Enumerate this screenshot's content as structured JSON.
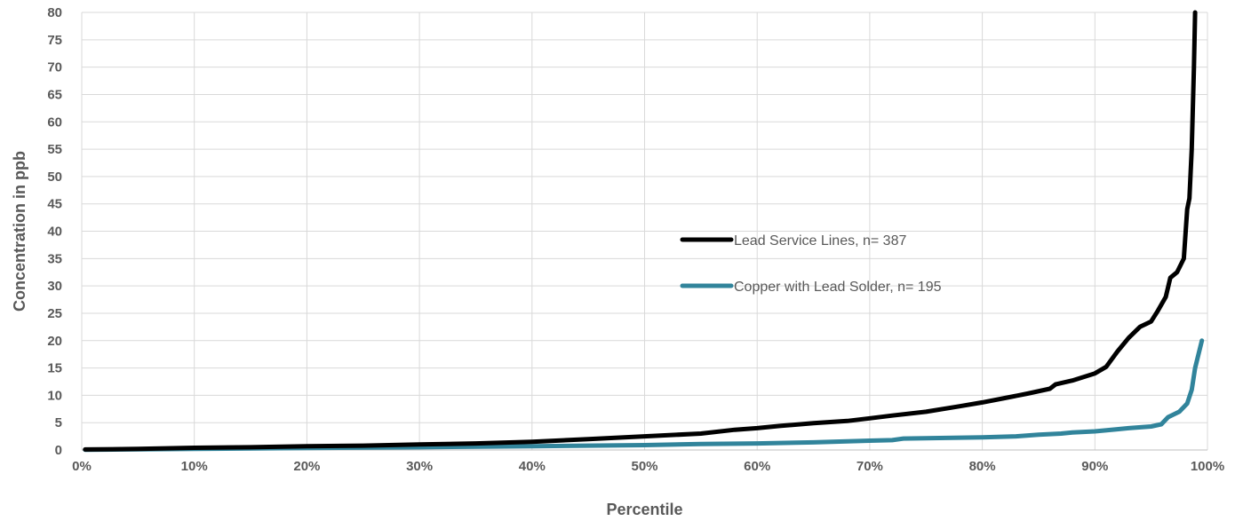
{
  "chart_data": {
    "type": "line",
    "title": "",
    "xlabel": "Percentile",
    "ylabel": "Concentration in ppb",
    "xlim": [
      0,
      100
    ],
    "ylim": [
      0,
      80
    ],
    "x_ticks": [
      0,
      10,
      20,
      30,
      40,
      50,
      60,
      70,
      80,
      90,
      100
    ],
    "x_tick_labels": [
      "0%",
      "10%",
      "20%",
      "30%",
      "40%",
      "50%",
      "60%",
      "70%",
      "80%",
      "90%",
      "100%"
    ],
    "y_ticks": [
      0,
      5,
      10,
      15,
      20,
      25,
      30,
      35,
      40,
      45,
      50,
      55,
      60,
      65,
      70,
      75,
      80
    ],
    "y_tick_labels": [
      "0",
      "5",
      "10",
      "15",
      "20",
      "25",
      "30",
      "35",
      "40",
      "45",
      "50",
      "55",
      "60",
      "65",
      "70",
      "75",
      "80"
    ],
    "grid": true,
    "legend_position": "center-right",
    "series": [
      {
        "name": "Lead Service Lines, n= 387",
        "color": "#000000",
        "points": [
          [
            0.3,
            0.1
          ],
          [
            5,
            0.2
          ],
          [
            10,
            0.4
          ],
          [
            15,
            0.5
          ],
          [
            20,
            0.7
          ],
          [
            25,
            0.8
          ],
          [
            30,
            1.0
          ],
          [
            35,
            1.2
          ],
          [
            40,
            1.5
          ],
          [
            45,
            2.0
          ],
          [
            50,
            2.5
          ],
          [
            55,
            3.0
          ],
          [
            58,
            3.7
          ],
          [
            60,
            4.0
          ],
          [
            62,
            4.4
          ],
          [
            65,
            4.9
          ],
          [
            68,
            5.3
          ],
          [
            70,
            5.8
          ],
          [
            72,
            6.3
          ],
          [
            75,
            7.0
          ],
          [
            78,
            8.0
          ],
          [
            80,
            8.7
          ],
          [
            82,
            9.5
          ],
          [
            84,
            10.3
          ],
          [
            86,
            11.2
          ],
          [
            86.5,
            12.0
          ],
          [
            88,
            12.7
          ],
          [
            90,
            14.0
          ],
          [
            91,
            15.2
          ],
          [
            92,
            18.0
          ],
          [
            93,
            20.5
          ],
          [
            94,
            22.5
          ],
          [
            95,
            23.5
          ],
          [
            95.6,
            25.5
          ],
          [
            96.3,
            28.0
          ],
          [
            96.7,
            31.5
          ],
          [
            97.3,
            32.5
          ],
          [
            97.9,
            35.0
          ],
          [
            98.2,
            44.0
          ],
          [
            98.4,
            46.0
          ],
          [
            98.6,
            55.0
          ],
          [
            98.8,
            70.0
          ],
          [
            98.9,
            80.0
          ]
        ]
      },
      {
        "name": "Copper with Lead Solder, n= 195",
        "color": "#31849b",
        "points": [
          [
            0.3,
            0.05
          ],
          [
            10,
            0.2
          ],
          [
            20,
            0.35
          ],
          [
            30,
            0.5
          ],
          [
            40,
            0.7
          ],
          [
            50,
            0.9
          ],
          [
            55,
            1.1
          ],
          [
            60,
            1.2
          ],
          [
            65,
            1.4
          ],
          [
            70,
            1.7
          ],
          [
            72,
            1.8
          ],
          [
            73,
            2.1
          ],
          [
            80,
            2.3
          ],
          [
            83,
            2.5
          ],
          [
            85,
            2.8
          ],
          [
            87,
            3.0
          ],
          [
            88,
            3.2
          ],
          [
            90,
            3.4
          ],
          [
            92,
            3.8
          ],
          [
            93,
            4.0
          ],
          [
            95,
            4.3
          ],
          [
            95.9,
            4.7
          ],
          [
            96.5,
            6.0
          ],
          [
            97.5,
            7.0
          ],
          [
            98.2,
            8.5
          ],
          [
            98.6,
            11.0
          ],
          [
            98.9,
            15.0
          ],
          [
            99.5,
            20.0
          ]
        ]
      }
    ]
  }
}
